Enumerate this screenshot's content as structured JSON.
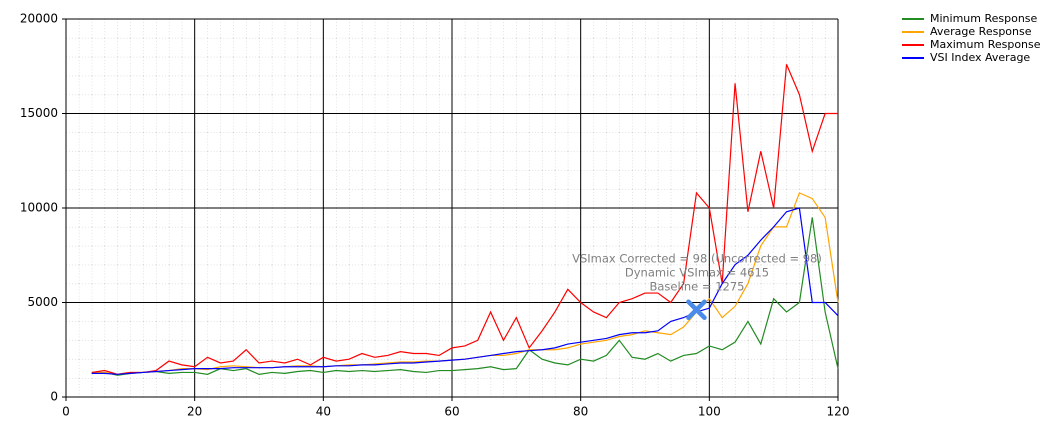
{
  "chart_data": {
    "type": "line",
    "x": [
      4,
      6,
      8,
      10,
      12,
      14,
      16,
      18,
      20,
      22,
      24,
      26,
      28,
      30,
      32,
      34,
      36,
      38,
      40,
      42,
      44,
      46,
      48,
      50,
      52,
      54,
      56,
      58,
      60,
      62,
      64,
      66,
      68,
      70,
      72,
      74,
      76,
      78,
      80,
      82,
      84,
      86,
      88,
      90,
      92,
      94,
      96,
      98,
      100,
      102,
      104,
      106,
      108,
      110,
      112,
      114,
      116,
      118,
      120
    ],
    "series": [
      {
        "name": "Minimum Response",
        "color": "#228b22",
        "values": [
          1250,
          1300,
          1150,
          1250,
          1300,
          1350,
          1250,
          1300,
          1300,
          1200,
          1500,
          1400,
          1500,
          1200,
          1300,
          1250,
          1350,
          1400,
          1300,
          1400,
          1350,
          1400,
          1350,
          1400,
          1450,
          1350,
          1300,
          1400,
          1400,
          1450,
          1500,
          1600,
          1450,
          1500,
          2500,
          2000,
          1800,
          1700,
          2000,
          1900,
          2200,
          3000,
          2100,
          2000,
          2300,
          1900,
          2200,
          2300,
          2700,
          2500,
          2900,
          4000,
          2800,
          5200,
          4500,
          5000,
          9500,
          4500,
          1500
        ]
      },
      {
        "name": "Average Response",
        "color": "#ffa500",
        "values": [
          1300,
          1300,
          1200,
          1300,
          1300,
          1350,
          1400,
          1500,
          1500,
          1450,
          1600,
          1650,
          1600,
          1550,
          1550,
          1600,
          1650,
          1650,
          1600,
          1650,
          1700,
          1700,
          1750,
          1800,
          1850,
          1850,
          1900,
          1900,
          1950,
          2000,
          2100,
          2200,
          2200,
          2300,
          2500,
          2500,
          2500,
          2600,
          2800,
          2900,
          3000,
          3200,
          3300,
          3500,
          3400,
          3300,
          3700,
          4500,
          5200,
          4200,
          4800,
          6000,
          8000,
          9000,
          9000,
          10800,
          10500,
          9500,
          5000
        ]
      },
      {
        "name": "Maximum Response",
        "color": "#ff0000",
        "values": [
          1300,
          1400,
          1200,
          1300,
          1300,
          1400,
          1900,
          1700,
          1600,
          2100,
          1800,
          1900,
          2500,
          1800,
          1900,
          1800,
          2000,
          1700,
          2100,
          1900,
          2000,
          2300,
          2100,
          2200,
          2400,
          2300,
          2300,
          2200,
          2600,
          2700,
          3000,
          4500,
          3000,
          4200,
          2600,
          3500,
          4500,
          5700,
          5000,
          4500,
          4200,
          5000,
          5200,
          5500,
          5500,
          5000,
          6000,
          10800,
          10000,
          6000,
          16600,
          9800,
          13000,
          10000,
          17600,
          16000,
          13000,
          15000,
          15000
        ]
      },
      {
        "name": "VSI Index Average",
        "color": "#0000ff",
        "values": [
          1250,
          1250,
          1200,
          1250,
          1300,
          1350,
          1400,
          1450,
          1500,
          1500,
          1500,
          1550,
          1550,
          1550,
          1550,
          1600,
          1600,
          1600,
          1600,
          1650,
          1650,
          1700,
          1700,
          1750,
          1800,
          1800,
          1850,
          1900,
          1950,
          2000,
          2100,
          2200,
          2300,
          2400,
          2450,
          2500,
          2600,
          2800,
          2900,
          3000,
          3100,
          3300,
          3400,
          3400,
          3500,
          4000,
          4200,
          4500,
          4700,
          6000,
          7000,
          7500,
          8300,
          9000,
          9800,
          10000,
          5000,
          5000,
          4300
        ]
      }
    ],
    "xlim": [
      0,
      120
    ],
    "xticks": [
      0,
      20,
      40,
      60,
      80,
      100,
      120
    ],
    "ylim": [
      0,
      20000
    ],
    "yticks": [
      0,
      5000,
      10000,
      15000,
      20000
    ],
    "grid": true,
    "legend": "right",
    "annotations": [
      "VSImax Corrected = 98 (Uncorrected = 98)",
      "Dynamic VSImax = 4615",
      "Baseline = 1275"
    ],
    "marker": {
      "x": 98,
      "y": 4615,
      "color": "#4a8ae8"
    }
  }
}
